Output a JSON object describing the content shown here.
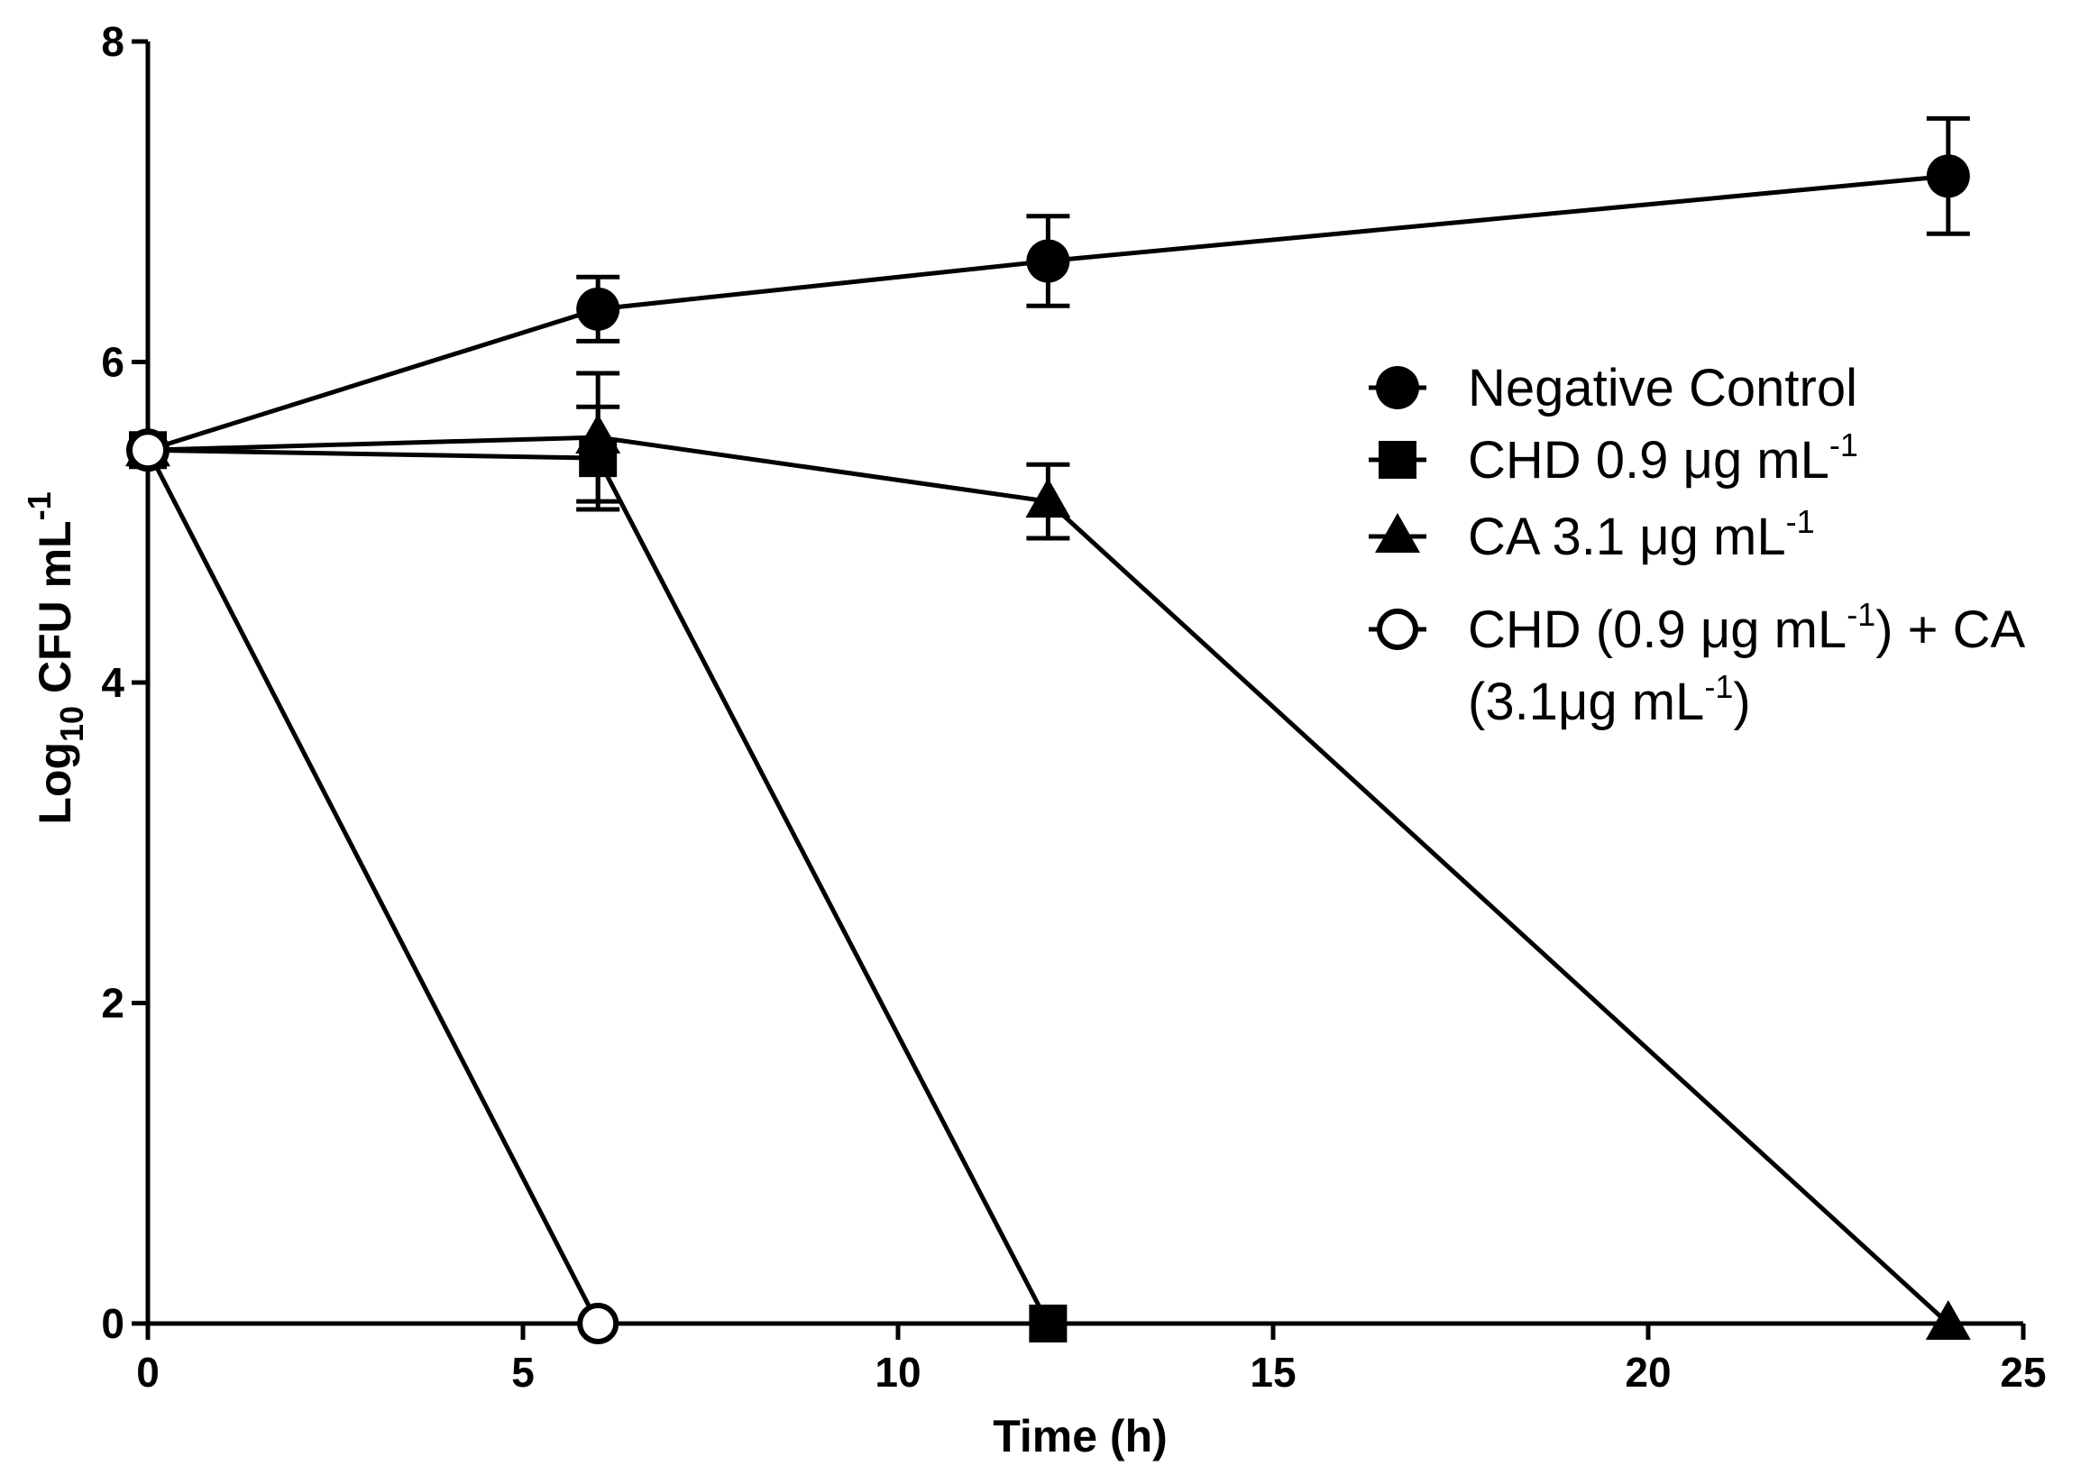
{
  "chart_data": {
    "type": "line",
    "xlabel": "Time (h)",
    "ylabel_main": "Log",
    "ylabel_sub": "10",
    "ylabel_rest": " CFU mL",
    "ylabel_sup": "-1",
    "xlim": [
      0,
      25
    ],
    "ylim": [
      0,
      8
    ],
    "xticks": [
      0,
      5,
      10,
      15,
      20,
      25
    ],
    "yticks": [
      0,
      2,
      4,
      6,
      8
    ],
    "legend_position": "right",
    "series": [
      {
        "name": "Negative Control",
        "marker": "circle-filled",
        "x": [
          0,
          6,
          12,
          24
        ],
        "y": [
          5.45,
          6.33,
          6.63,
          7.16
        ],
        "err": [
          0,
          0.2,
          0.28,
          0.36
        ]
      },
      {
        "name": "CHD 0.9 μg mL-1",
        "marker": "square-filled",
        "x": [
          0,
          6,
          12
        ],
        "y": [
          5.45,
          5.4,
          0
        ],
        "err": [
          0,
          0.32,
          0
        ]
      },
      {
        "name": "CA 3.1 μg mL-1",
        "marker": "triangle-filled",
        "x": [
          0,
          6,
          12,
          24
        ],
        "y": [
          5.45,
          5.53,
          5.13,
          0
        ],
        "err": [
          0,
          0.4,
          0.23,
          0
        ]
      },
      {
        "name": "CHD (0.9 μg mL-1) + CA (3.1μg mL-1)",
        "marker": "circle-open",
        "x": [
          0,
          6
        ],
        "y": [
          5.45,
          0
        ],
        "err": [
          0,
          0
        ]
      }
    ],
    "legend": [
      {
        "parts": [
          "Negative Control"
        ]
      },
      {
        "parts": [
          "CHD 0.9 ",
          "μ",
          "g mL",
          "-1",
          ""
        ]
      },
      {
        "parts": [
          "CA 3.1 ",
          "μ",
          "g mL",
          "-1",
          ""
        ]
      },
      {
        "parts": [
          "CHD (0.9 ",
          "μ",
          "g mL",
          "-1",
          ") + CA"
        ],
        "line2": [
          "(3.1",
          "μ",
          "g mL",
          "-1",
          ")"
        ]
      }
    ]
  }
}
